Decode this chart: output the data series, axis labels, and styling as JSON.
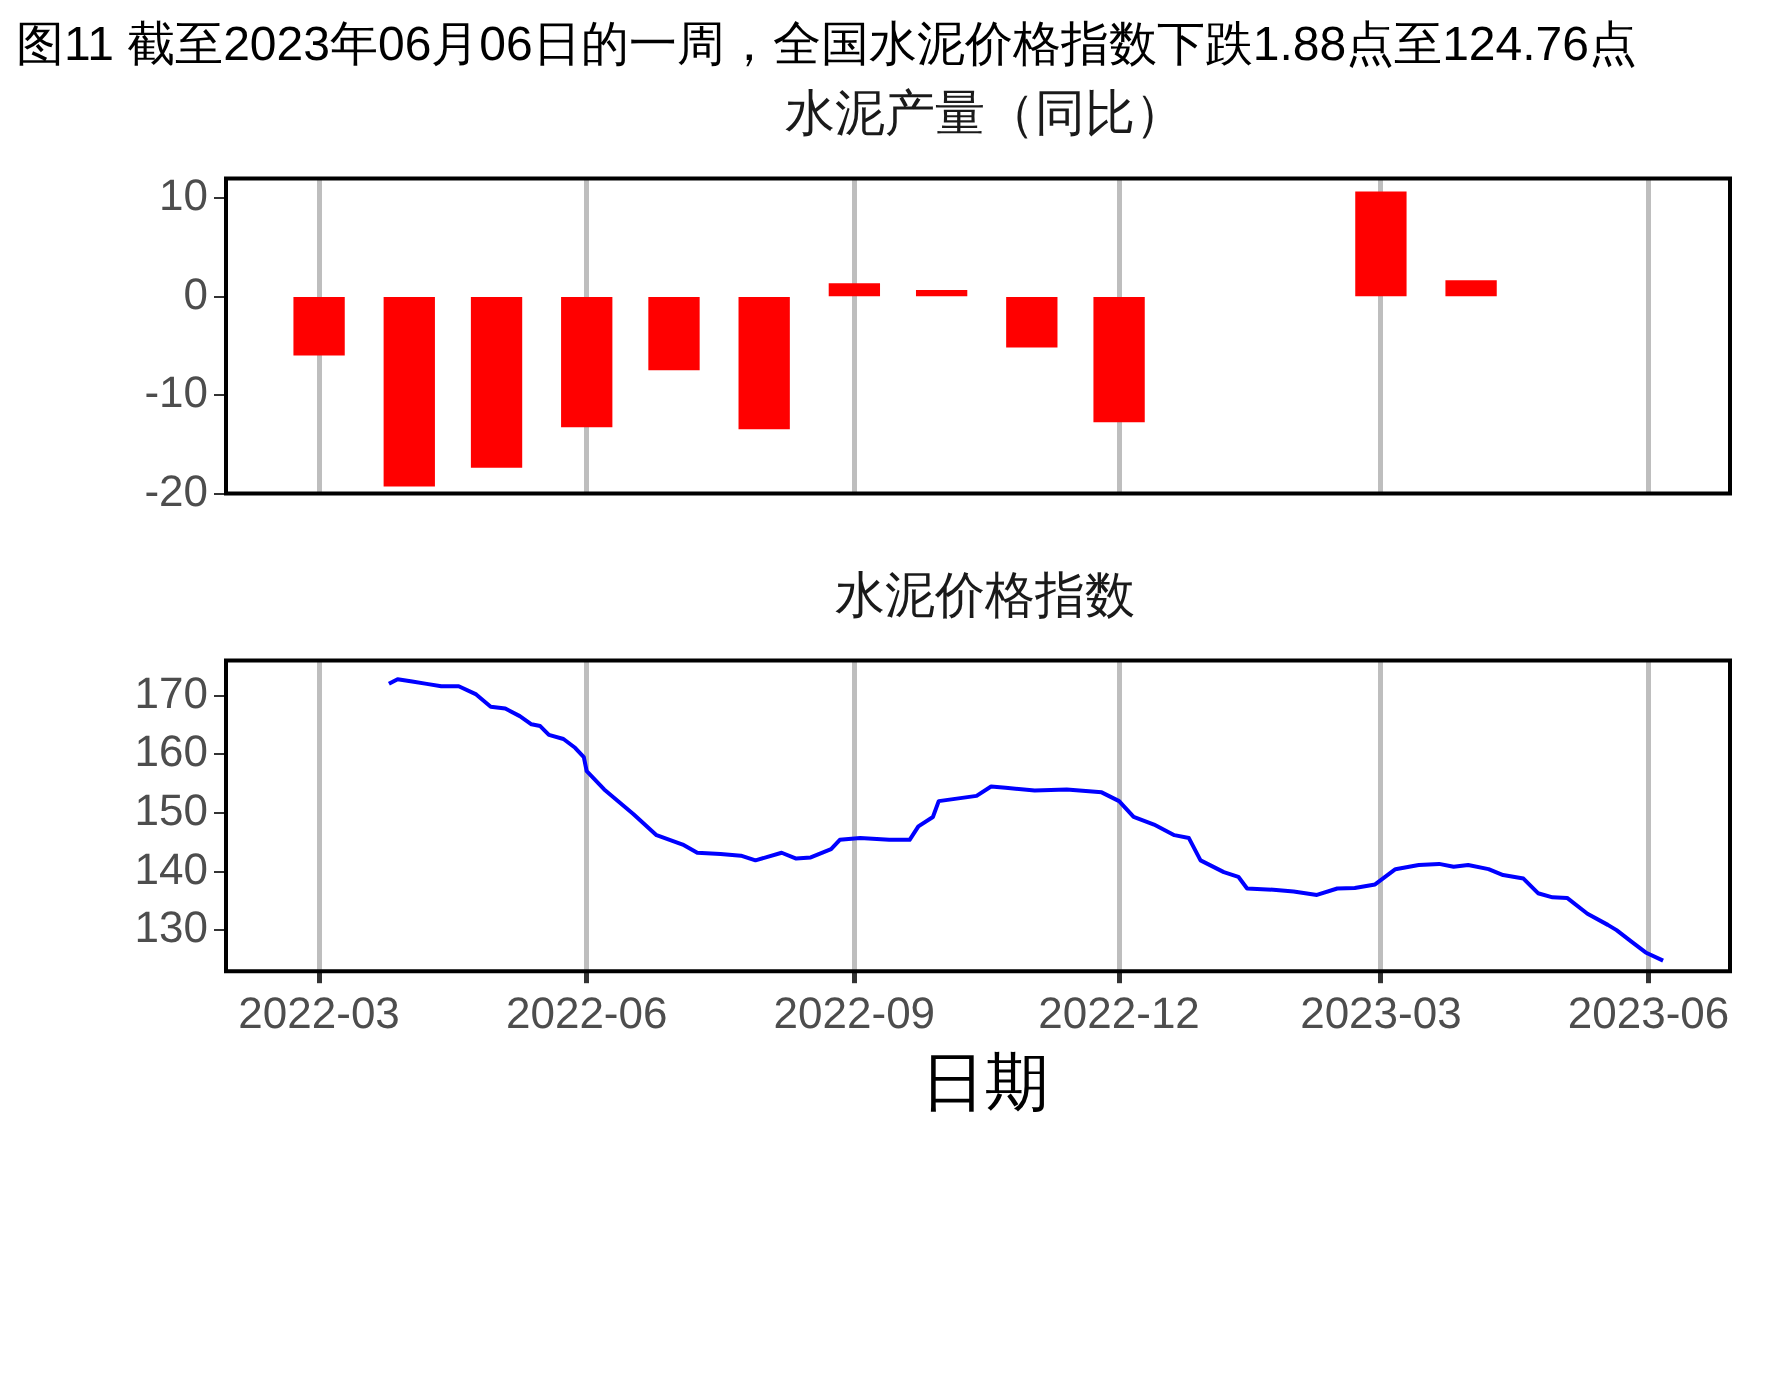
{
  "chart_data": [
    {
      "type": "bar",
      "title": "水泥产量（同比）",
      "annotations": [
        "图11  截至2023年06月06日的一周，全国水泥价格指数下跌1.88点至124.76点"
      ],
      "x": [
        "2022-03",
        "2022-04",
        "2022-05",
        "2022-06",
        "2022-07",
        "2022-08",
        "2022-09",
        "2022-10",
        "2022-11",
        "2022-12",
        "2023-03",
        "2023-04"
      ],
      "values": [
        -5.9,
        -19.2,
        -17.3,
        -13.2,
        -7.4,
        -13.4,
        1.3,
        0.6,
        -5.1,
        -12.7,
        10.6,
        1.6
      ],
      "color": "#ff0000",
      "xlim": [
        "2022-01-28",
        "2023-06-29"
      ],
      "xticks": [
        "2022-03",
        "2022-06",
        "2022-09",
        "2022-12",
        "2023-03",
        "2023-06"
      ],
      "ylim": [
        -20,
        12
      ],
      "yticks": [
        -20,
        -10,
        0,
        10
      ],
      "grid": "x",
      "legend": false,
      "tick_labels": "y"
    },
    {
      "type": "line",
      "title": "水泥价格指数",
      "xlabel": "日期",
      "x": [
        "2022-03-25",
        "2022-03-28",
        "2022-04-02",
        "2022-04-07",
        "2022-04-12",
        "2022-04-18",
        "2022-04-24",
        "2022-04-29",
        "2022-05-04",
        "2022-05-09",
        "2022-05-13",
        "2022-05-16",
        "2022-05-19",
        "2022-05-24",
        "2022-05-28",
        "2022-05-31",
        "2022-06-01",
        "2022-06-07",
        "2022-06-12",
        "2022-06-17",
        "2022-06-25",
        "2022-07-04",
        "2022-07-09",
        "2022-07-17",
        "2022-07-24",
        "2022-07-29",
        "2022-08-07",
        "2022-08-12",
        "2022-08-17",
        "2022-08-24",
        "2022-08-27",
        "2022-09-03",
        "2022-09-13",
        "2022-09-20",
        "2022-09-23",
        "2022-09-28",
        "2022-09-30",
        "2022-10-13",
        "2022-10-18",
        "2022-10-23",
        "2022-11-02",
        "2022-11-13",
        "2022-11-25",
        "2022-12-01",
        "2022-12-06",
        "2022-12-13",
        "2022-12-20",
        "2022-12-25",
        "2022-12-29",
        "2023-01-06",
        "2023-01-11",
        "2023-01-14",
        "2023-01-23",
        "2023-01-30",
        "2023-02-07",
        "2023-02-14",
        "2023-02-20",
        "2023-02-27",
        "2023-03-06",
        "2023-03-14",
        "2023-03-21",
        "2023-03-26",
        "2023-03-31",
        "2023-04-07",
        "2023-04-12",
        "2023-04-19",
        "2023-04-24",
        "2023-04-29",
        "2023-05-04",
        "2023-05-11",
        "2023-05-18",
        "2023-05-21",
        "2023-05-26",
        "2023-05-31",
        "2023-06-06"
      ],
      "values": [
        172.0,
        172.8,
        172.4,
        172.0,
        171.6,
        171.6,
        170.2,
        168.1,
        167.8,
        166.5,
        165.1,
        164.8,
        163.3,
        162.6,
        161.1,
        159.5,
        157.1,
        154.0,
        151.9,
        149.8,
        146.2,
        144.6,
        143.2,
        143.0,
        142.7,
        141.9,
        143.2,
        142.2,
        142.4,
        143.8,
        145.4,
        145.7,
        145.4,
        145.4,
        147.7,
        149.3,
        152.0,
        152.9,
        154.5,
        154.3,
        153.8,
        154.0,
        153.5,
        152.0,
        149.3,
        148.0,
        146.2,
        145.7,
        141.9,
        139.9,
        139.1,
        137.1,
        136.9,
        136.6,
        136.0,
        137.1,
        137.2,
        137.8,
        140.4,
        141.1,
        141.3,
        140.8,
        141.1,
        140.4,
        139.4,
        138.8,
        136.3,
        135.6,
        135.5,
        132.8,
        130.9,
        130.0,
        128.1,
        126.2,
        124.8
      ],
      "color": "#0000ff",
      "xlim": [
        "2022-01-28",
        "2023-06-29"
      ],
      "xticks": [
        "2022-03",
        "2022-06",
        "2022-09",
        "2022-12",
        "2023-03",
        "2023-06"
      ],
      "ylim": [
        123,
        176
      ],
      "yticks": [
        130,
        140,
        150,
        160,
        170
      ],
      "grid": "x",
      "legend": false,
      "marker": "none",
      "line_style": "solid"
    }
  ]
}
